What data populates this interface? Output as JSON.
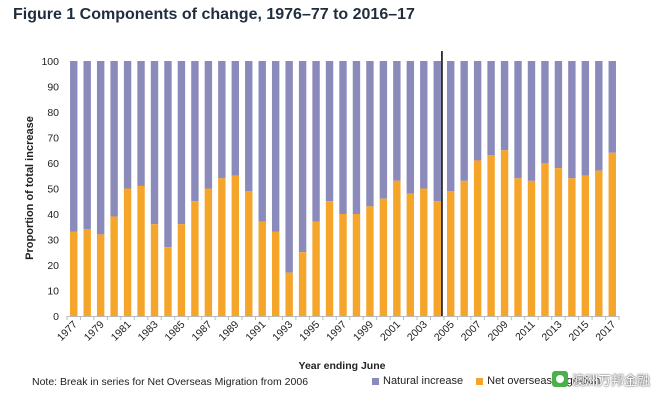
{
  "title": "Figure 1 Components of change, 1976–77 to 2016–17",
  "note": "Note: Break in series for Net Overseas Migration from 2006",
  "watermark": "澳洲万邦金融",
  "colors": {
    "natural_increase": "#8b8bbb",
    "net_overseas_migration": "#f5a52a",
    "axis": "#bbbbbb",
    "break_line": "#000000"
  },
  "chart_data": {
    "type": "bar",
    "stacked": true,
    "xlabel": "Year ending June",
    "ylabel": "Proportion of total increase",
    "ylim": [
      0,
      100
    ],
    "yticks": [
      0,
      10,
      20,
      30,
      40,
      50,
      60,
      70,
      80,
      90,
      100
    ],
    "categories": [
      "1977",
      "1978",
      "1979",
      "1980",
      "1981",
      "1982",
      "1983",
      "1984",
      "1985",
      "1986",
      "1987",
      "1988",
      "1989",
      "1990",
      "1991",
      "1992",
      "1993",
      "1994",
      "1995",
      "1996",
      "1997",
      "1998",
      "1999",
      "2000",
      "2001",
      "2002",
      "2003",
      "2004",
      "2005",
      "2006",
      "2007",
      "2008",
      "2009",
      "2010",
      "2011",
      "2012",
      "2013",
      "2014",
      "2015",
      "2016",
      "2017"
    ],
    "tick_labels": [
      "1977",
      "1979",
      "1981",
      "1983",
      "1985",
      "1987",
      "1989",
      "1991",
      "1993",
      "1995",
      "1997",
      "1999",
      "2001",
      "2003",
      "2005",
      "2007",
      "2009",
      "2011",
      "2013",
      "2015",
      "2017"
    ],
    "series": [
      {
        "name": "Net overseas migration",
        "values": [
          33,
          34,
          32,
          39,
          50,
          51,
          36,
          27,
          36,
          45,
          50,
          54,
          55,
          49,
          37,
          33,
          17,
          25,
          37,
          45,
          40,
          40,
          43,
          46,
          53,
          48,
          50,
          45,
          49,
          53,
          61,
          63,
          65,
          54,
          53,
          60,
          58,
          54,
          55,
          57,
          64
        ]
      },
      {
        "name": "Natural increase",
        "values": [
          67,
          66,
          68,
          61,
          50,
          49,
          64,
          73,
          64,
          55,
          50,
          46,
          45,
          51,
          63,
          67,
          83,
          75,
          63,
          55,
          60,
          60,
          57,
          54,
          47,
          52,
          50,
          55,
          51,
          47,
          39,
          37,
          35,
          46,
          47,
          40,
          42,
          46,
          45,
          43,
          36
        ]
      }
    ],
    "break_after": "2004",
    "legend": {
      "position": "bottom-right",
      "entries": [
        "Natural increase",
        "Net overseas migration"
      ]
    },
    "grid": false
  }
}
